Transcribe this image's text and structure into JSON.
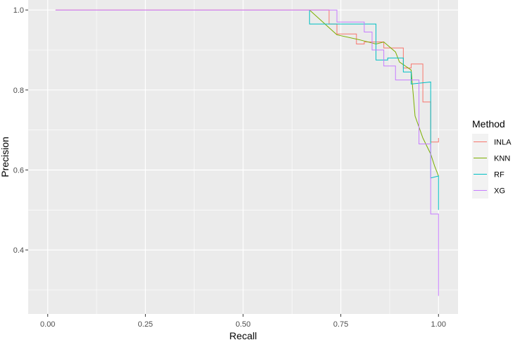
{
  "chart_data": {
    "type": "line",
    "title": "",
    "xlabel": "Recall",
    "ylabel": "Precision",
    "xlim": [
      -0.05,
      1.05
    ],
    "ylim": [
      0.24,
      1.025
    ],
    "x_ticks": [
      0,
      0.25,
      0.5,
      0.75,
      1
    ],
    "x_tick_labels": [
      "0.00",
      "0.25",
      "0.50",
      "0.75",
      "1.00"
    ],
    "y_ticks": [
      0.4,
      0.6,
      0.8,
      1.0
    ],
    "y_tick_labels": [
      "0.4",
      "0.6",
      "0.8",
      "1.0"
    ],
    "grid": true,
    "legend": {
      "title": "Method",
      "position": "right"
    },
    "series": [
      {
        "name": "INLA",
        "color": "#F8766D",
        "x": [
          0.02,
          0.72,
          0.72,
          0.74,
          0.74,
          0.79,
          0.79,
          0.81,
          0.81,
          0.86,
          0.86,
          0.91,
          0.91,
          0.93,
          0.93,
          0.96,
          0.96,
          0.98,
          0.98,
          1.0,
          1.0
        ],
        "y": [
          1.0,
          1.0,
          0.965,
          0.965,
          0.94,
          0.94,
          0.915,
          0.915,
          0.92,
          0.92,
          0.905,
          0.905,
          0.855,
          0.855,
          0.865,
          0.865,
          0.77,
          0.77,
          0.67,
          0.67,
          0.68
        ]
      },
      {
        "name": "KNN",
        "color": "#7CAE00",
        "x": [
          0.67,
          0.74,
          0.8,
          0.84,
          0.86,
          0.89,
          0.9,
          0.93,
          0.94,
          0.96,
          0.98,
          0.99,
          1.0
        ],
        "y": [
          1.0,
          0.938,
          0.925,
          0.915,
          0.92,
          0.895,
          0.87,
          0.85,
          0.735,
          0.68,
          0.64,
          0.61,
          0.585
        ]
      },
      {
        "name": "RF",
        "color": "#00BFC4",
        "x": [
          0.67,
          0.67,
          0.71,
          0.71,
          0.84,
          0.84,
          0.87,
          0.87,
          0.91,
          0.91,
          0.93,
          0.93,
          0.98,
          0.98,
          1.0,
          1.0
        ],
        "y": [
          1.0,
          0.965,
          0.965,
          0.965,
          0.965,
          0.875,
          0.875,
          0.88,
          0.88,
          0.845,
          0.845,
          0.815,
          0.82,
          0.58,
          0.585,
          0.5
        ]
      },
      {
        "name": "XG",
        "color": "#C77CFF",
        "x": [
          0.02,
          0.74,
          0.74,
          0.81,
          0.81,
          0.83,
          0.83,
          0.86,
          0.86,
          0.89,
          0.89,
          0.95,
          0.95,
          0.98,
          0.98,
          1.0,
          1.0
        ],
        "y": [
          1.0,
          1.0,
          0.97,
          0.97,
          0.945,
          0.945,
          0.9,
          0.9,
          0.86,
          0.86,
          0.825,
          0.825,
          0.665,
          0.665,
          0.49,
          0.49,
          0.285
        ]
      }
    ]
  }
}
